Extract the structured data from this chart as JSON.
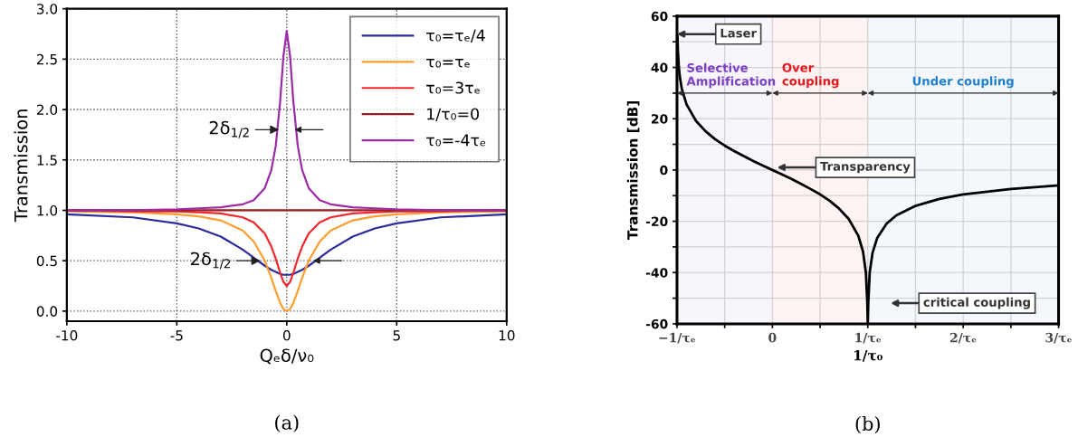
{
  "chart_data": [
    {
      "type": "line",
      "title": "(a)",
      "xlabel": "Qₑδ/ν₀",
      "ylabel": "Transmission",
      "xlim": [
        -10,
        10
      ],
      "ylim": [
        -0.1,
        3.0
      ],
      "xticks": [
        -10,
        -5,
        0,
        5,
        10
      ],
      "yticks": [
        {
          "value": 0,
          "label": "0.0"
        },
        0.5,
        {
          "value": 1,
          "label": "1.0"
        },
        1.5,
        {
          "value": 2,
          "label": "2.0"
        },
        2.5,
        {
          "value": 3,
          "label": "3.0"
        }
      ],
      "grid": true,
      "legend": "top right",
      "line_style": "solid",
      "marker": "none",
      "x": [
        -10,
        -7,
        -5,
        -4,
        -3,
        -2,
        -1.5,
        -1,
        -0.7,
        -0.5,
        -0.3,
        -0.15,
        0,
        0.15,
        0.3,
        0.5,
        0.7,
        1,
        1.5,
        2,
        3,
        4,
        5,
        7,
        10
      ],
      "series": [
        {
          "name": "τ₀=τₑ/4",
          "color": "#2b2b9b",
          "values": [
            0.96,
            0.93,
            0.87,
            0.82,
            0.74,
            0.61,
            0.53,
            0.45,
            0.41,
            0.39,
            0.37,
            0.36,
            0.36,
            0.36,
            0.37,
            0.39,
            0.41,
            0.45,
            0.53,
            0.61,
            0.74,
            0.82,
            0.87,
            0.93,
            0.96
          ]
        },
        {
          "name": "τ₀=τₑ",
          "color": "#ff9d2e",
          "values": [
            0.99,
            0.98,
            0.96,
            0.94,
            0.9,
            0.8,
            0.69,
            0.5,
            0.33,
            0.2,
            0.08,
            0.02,
            0,
            0.02,
            0.08,
            0.2,
            0.33,
            0.5,
            0.69,
            0.8,
            0.9,
            0.94,
            0.96,
            0.98,
            0.99
          ]
        },
        {
          "name": "τ₀=3τₑ",
          "color": "#f0282d",
          "values": [
            1.0,
            0.99,
            0.99,
            0.98,
            0.97,
            0.93,
            0.88,
            0.77,
            0.64,
            0.52,
            0.38,
            0.29,
            0.25,
            0.29,
            0.38,
            0.52,
            0.64,
            0.77,
            0.88,
            0.93,
            0.97,
            0.98,
            0.99,
            0.99,
            1.0
          ]
        },
        {
          "name": "1/τ₀=0",
          "color": "#9b1c1c",
          "x": [
            -10,
            10
          ],
          "values": [
            1,
            1
          ]
        },
        {
          "name": "τ₀=-4τₑ",
          "color": "#9b2aa6",
          "values": [
            1.0,
            1.0,
            1.01,
            1.02,
            1.03,
            1.06,
            1.1,
            1.22,
            1.4,
            1.64,
            2.08,
            2.53,
            2.78,
            2.53,
            2.08,
            1.64,
            1.4,
            1.22,
            1.1,
            1.06,
            1.03,
            1.02,
            1.01,
            1.0,
            1.0
          ]
        }
      ],
      "annotations": [
        {
          "text": "2δ$_{1/2}$",
          "x": -0.35,
          "y": 1.8
        },
        {
          "text": "2δ$_{1/2}$",
          "x": -1.2,
          "y": 0.5
        }
      ]
    },
    {
      "type": "line",
      "title": "(b)",
      "xlabel": "1/τ₀",
      "ylabel": "Transmission [dB]",
      "xlim": [
        -1,
        3
      ],
      "ylim": [
        -60,
        60
      ],
      "grid": true,
      "line_style": "solid",
      "marker": "none",
      "xticks": [
        {
          "value": -1,
          "label": "−1/τₑ"
        },
        {
          "value": -0.5,
          "label": null
        },
        0,
        {
          "value": 0.5,
          "label": null
        },
        {
          "value": 1,
          "label": "1/τₑ"
        },
        {
          "value": 1.5,
          "label": null
        },
        {
          "value": 2,
          "label": "2/τₑ"
        },
        {
          "value": 2.5,
          "label": null
        },
        {
          "value": 3,
          "label": "3/τₑ"
        }
      ],
      "yticks": [
        -60,
        {
          "value": -50,
          "label": null
        },
        -40,
        {
          "value": -30,
          "label": null
        },
        -20,
        {
          "value": -10,
          "label": null
        },
        0,
        {
          "value": 10,
          "label": null
        },
        20,
        {
          "value": 30,
          "label": null
        },
        40,
        {
          "value": 50,
          "label": null
        },
        60
      ],
      "x": [
        -0.995,
        -0.99,
        -0.98,
        -0.97,
        -0.95,
        -0.9,
        -0.8,
        -0.7,
        -0.6,
        -0.5,
        -0.4,
        -0.3,
        -0.2,
        -0.1,
        0,
        0.1,
        0.2,
        0.3,
        0.4,
        0.5,
        0.6,
        0.7,
        0.8,
        0.9,
        0.95,
        0.98,
        0.995,
        1.0,
        1.005,
        1.02,
        1.05,
        1.1,
        1.2,
        1.3,
        1.5,
        1.75,
        2.0,
        2.5,
        3.0
      ],
      "series": [
        {
          "color": "#000000",
          "values": [
            52,
            46,
            40,
            36.3,
            31.8,
            25.6,
            19.1,
            15.1,
            12.0,
            9.5,
            7.4,
            5.4,
            3.5,
            1.7,
            0,
            -1.7,
            -3.5,
            -5.4,
            -7.4,
            -9.5,
            -12.0,
            -15.1,
            -19.1,
            -25.6,
            -31.8,
            -40,
            -52,
            -60,
            -52,
            -40,
            -32.3,
            -26.4,
            -20.8,
            -17.7,
            -14.0,
            -11.3,
            -9.5,
            -7.4,
            -6.0
          ]
        }
      ],
      "bands": [
        {
          "axis": "x",
          "from": -1,
          "to": 0,
          "label": "Selective\nAmplification",
          "color": "#7b3fc4"
        },
        {
          "axis": "x",
          "from": 0,
          "to": 1,
          "label": "Over\ncoupling",
          "color": "#e8151b"
        },
        {
          "axis": "x",
          "from": 1,
          "to": 3,
          "label": "Under coupling",
          "color": "#1e7fd0"
        }
      ],
      "annotations": [
        {
          "text": "Laser",
          "x": -1,
          "y": 53
        },
        {
          "text": "Transparency",
          "x": 0.05,
          "y": 1
        },
        "critical coupling"
      ]
    }
  ]
}
